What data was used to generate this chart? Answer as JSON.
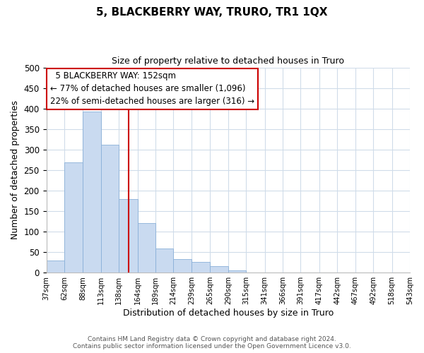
{
  "title": "5, BLACKBERRY WAY, TRURO, TR1 1QX",
  "subtitle": "Size of property relative to detached houses in Truro",
  "xlabel": "Distribution of detached houses by size in Truro",
  "ylabel": "Number of detached properties",
  "bar_color": "#c9daf0",
  "bar_edge_color": "#8ab0d8",
  "vline_x": 152,
  "vline_color": "#cc0000",
  "footer_lines": [
    "Contains HM Land Registry data © Crown copyright and database right 2024.",
    "Contains public sector information licensed under the Open Government Licence v3.0."
  ],
  "annotation_box": {
    "text_line1": "5 BLACKBERRY WAY: 152sqm",
    "text_line2": "← 77% of detached houses are smaller (1,096)",
    "text_line3": "22% of semi-detached houses are larger (316) →"
  },
  "bin_edges": [
    37,
    62,
    88,
    113,
    138,
    164,
    189,
    214,
    239,
    265,
    290,
    315,
    341,
    366,
    391,
    417,
    442,
    467,
    492,
    518,
    543
  ],
  "bar_heights": [
    30,
    268,
    392,
    311,
    180,
    120,
    58,
    33,
    26,
    15,
    6,
    1,
    0,
    0,
    0,
    0,
    0,
    0,
    0,
    1
  ],
  "ylim": [
    0,
    500
  ],
  "yticks": [
    0,
    50,
    100,
    150,
    200,
    250,
    300,
    350,
    400,
    450,
    500
  ],
  "background_color": "#ffffff",
  "grid_color": "#d0dcea"
}
